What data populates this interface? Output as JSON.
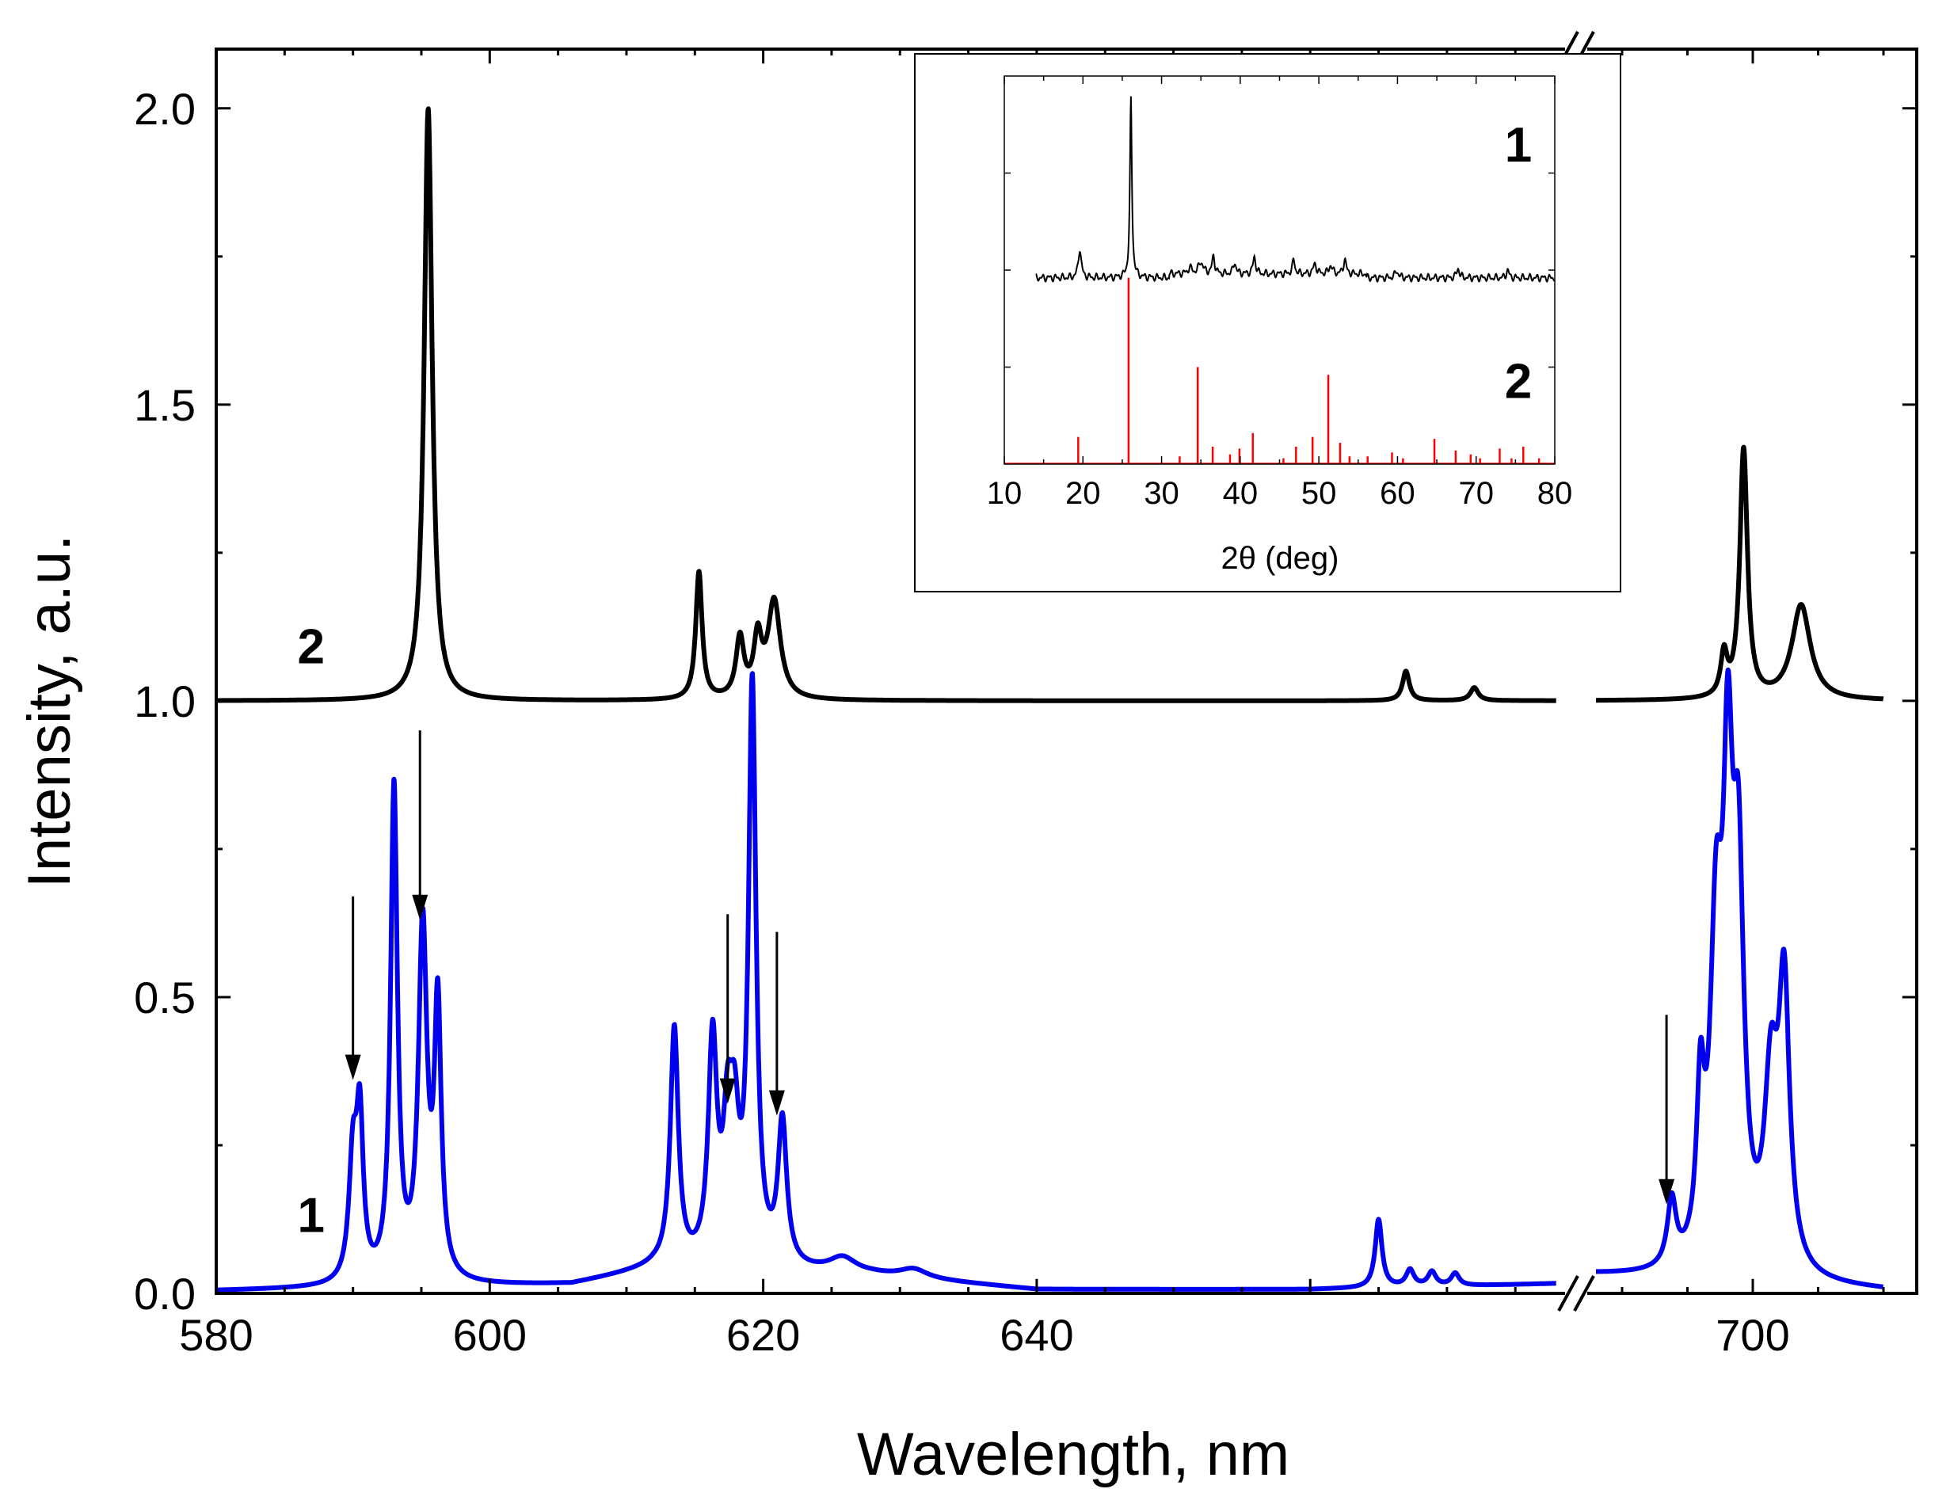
{
  "chart_data": [
    {
      "id": "main",
      "type": "line",
      "title": "",
      "xlabel": "Wavelength, nm",
      "ylabel": "Intensity, a.u.",
      "x_segments": [
        {
          "range": [
            580,
            678
          ],
          "ticks": [
            580,
            600,
            620,
            640
          ]
        },
        {
          "range": [
            688,
            710
          ],
          "ticks": [
            700
          ]
        }
      ],
      "axis_break": {
        "after": 678,
        "before": 688,
        "marker": "//"
      },
      "ylim": [
        0.0,
        2.1
      ],
      "yticks": [
        0.0,
        0.5,
        1.0,
        1.5,
        2.0
      ],
      "ytick_labels": [
        "0.0",
        "0.5",
        "1.0",
        "1.5",
        "2.0"
      ],
      "series": [
        {
          "name": "1",
          "color": "#0000ee",
          "baseline": 0.0,
          "background": [
            [
              580,
              0.004
            ],
            [
              600,
              0.012
            ],
            [
              606,
              0.014
            ],
            [
              612,
              0.04
            ],
            [
              628,
              0.03
            ],
            [
              640,
              0.006
            ],
            [
              660,
              0.006
            ],
            [
              678,
              0.015
            ],
            [
              688,
              0.03
            ],
            [
              710,
              0.004
            ]
          ],
          "peaks": [
            {
              "x": 590.0,
              "h": 0.2,
              "w": 0.35
            },
            {
              "x": 590.5,
              "h": 0.26,
              "w": 0.3
            },
            {
              "x": 593.0,
              "h": 0.83,
              "w": 0.3
            },
            {
              "x": 595.1,
              "h": 0.59,
              "w": 0.38
            },
            {
              "x": 596.2,
              "h": 0.45,
              "w": 0.3
            },
            {
              "x": 613.5,
              "h": 0.4,
              "w": 0.35
            },
            {
              "x": 616.3,
              "h": 0.37,
              "w": 0.38
            },
            {
              "x": 617.4,
              "h": 0.2,
              "w": 0.4
            },
            {
              "x": 617.9,
              "h": 0.19,
              "w": 0.4
            },
            {
              "x": 619.2,
              "h": 0.97,
              "w": 0.33
            },
            {
              "x": 621.4,
              "h": 0.24,
              "w": 0.38
            },
            {
              "x": 625.8,
              "h": 0.025,
              "w": 1.2
            },
            {
              "x": 631.0,
              "h": 0.015,
              "w": 1.2
            },
            {
              "x": 665.0,
              "h": 0.115,
              "w": 0.3
            },
            {
              "x": 667.3,
              "h": 0.028,
              "w": 0.35
            },
            {
              "x": 668.9,
              "h": 0.024,
              "w": 0.35
            },
            {
              "x": 670.6,
              "h": 0.021,
              "w": 0.35
            },
            {
              "x": 693.8,
              "h": 0.11,
              "w": 0.4
            },
            {
              "x": 696.0,
              "h": 0.26,
              "w": 0.35
            },
            {
              "x": 697.2,
              "h": 0.52,
              "w": 0.55
            },
            {
              "x": 698.1,
              "h": 0.7,
              "w": 0.45
            },
            {
              "x": 698.9,
              "h": 0.6,
              "w": 0.5
            },
            {
              "x": 701.4,
              "h": 0.3,
              "w": 0.6
            },
            {
              "x": 702.4,
              "h": 0.46,
              "w": 0.5
            }
          ]
        },
        {
          "name": "2",
          "color": "#000000",
          "baseline": 1.0,
          "background": [
            [
              580,
              0.0
            ],
            [
              710,
              0.0
            ]
          ],
          "peaks": [
            {
              "x": 595.5,
              "h": 1.0,
              "w": 0.35
            },
            {
              "x": 615.3,
              "h": 0.215,
              "w": 0.28
            },
            {
              "x": 618.3,
              "h": 0.1,
              "w": 0.35
            },
            {
              "x": 619.6,
              "h": 0.095,
              "w": 0.35
            },
            {
              "x": 620.8,
              "h": 0.165,
              "w": 0.55
            },
            {
              "x": 667.0,
              "h": 0.05,
              "w": 0.3
            },
            {
              "x": 672.0,
              "h": 0.022,
              "w": 0.35
            },
            {
              "x": 697.8,
              "h": 0.07,
              "w": 0.3
            },
            {
              "x": 699.3,
              "h": 0.42,
              "w": 0.35
            },
            {
              "x": 703.7,
              "h": 0.16,
              "w": 0.85
            }
          ]
        }
      ],
      "series_labels": [
        {
          "text": "1",
          "series": "1",
          "x": 582.0,
          "y": 0.13
        },
        {
          "text": "2",
          "series": "2",
          "x": 582.0,
          "y": 1.09
        }
      ],
      "annotations": [
        {
          "type": "arrow",
          "x": 590.0,
          "y_from": 0.67,
          "y_to": 0.36
        },
        {
          "type": "arrow",
          "x": 594.9,
          "y_from": 0.95,
          "y_to": 0.63
        },
        {
          "type": "arrow",
          "x": 617.4,
          "y_from": 0.64,
          "y_to": 0.32
        },
        {
          "type": "arrow",
          "x": 621.0,
          "y_from": 0.61,
          "y_to": 0.3
        },
        {
          "type": "arrow",
          "x": 693.4,
          "y_from": 0.47,
          "y_to": 0.15
        }
      ]
    },
    {
      "id": "inset",
      "type": "line",
      "title": "",
      "xlabel": "2θ (deg)",
      "ylabel": "",
      "xlim": [
        10,
        80
      ],
      "xticks": [
        10,
        20,
        30,
        40,
        50,
        60,
        70,
        80
      ],
      "ylim": [
        0,
        1
      ],
      "series": [
        {
          "name": "1",
          "color": "#000000",
          "baseline": 0.48,
          "peaks": [
            {
              "x": 19.6,
              "h": 0.075,
              "w": 0.22
            },
            {
              "x": 26.1,
              "h": 0.46,
              "w": 0.15
            },
            {
              "x": 33.6,
              "h": 0.015,
              "w": 0.3
            },
            {
              "x": 35.0,
              "h": 0.03,
              "w": 0.35
            },
            {
              "x": 36.6,
              "h": 0.045,
              "w": 0.2
            },
            {
              "x": 39.3,
              "h": 0.03,
              "w": 0.2
            },
            {
              "x": 41.8,
              "h": 0.045,
              "w": 0.2
            },
            {
              "x": 46.8,
              "h": 0.035,
              "w": 0.2
            },
            {
              "x": 49.5,
              "h": 0.025,
              "w": 0.25
            },
            {
              "x": 51.5,
              "h": 0.022,
              "w": 0.25
            },
            {
              "x": 53.3,
              "h": 0.038,
              "w": 0.2
            },
            {
              "x": 59.9,
              "h": 0.018,
              "w": 0.25
            },
            {
              "x": 67.7,
              "h": 0.025,
              "w": 0.2
            },
            {
              "x": 74.0,
              "h": 0.02,
              "w": 0.2
            }
          ]
        },
        {
          "name": "2",
          "color": "#ff0000",
          "type": "sticks",
          "baseline": 0.0,
          "sticks": [
            [
              19.4,
              0.07
            ],
            [
              25.8,
              0.48
            ],
            [
              32.3,
              0.02
            ],
            [
              34.6,
              0.25
            ],
            [
              36.5,
              0.045
            ],
            [
              38.7,
              0.025
            ],
            [
              39.9,
              0.04
            ],
            [
              41.6,
              0.08
            ],
            [
              45.5,
              0.015
            ],
            [
              47.1,
              0.045
            ],
            [
              49.2,
              0.07
            ],
            [
              51.2,
              0.23
            ],
            [
              52.7,
              0.055
            ],
            [
              53.9,
              0.02
            ],
            [
              56.2,
              0.02
            ],
            [
              59.3,
              0.03
            ],
            [
              60.7,
              0.015
            ],
            [
              64.7,
              0.065
            ],
            [
              67.4,
              0.035
            ],
            [
              69.3,
              0.025
            ],
            [
              70.5,
              0.015
            ],
            [
              73.0,
              0.04
            ],
            [
              74.5,
              0.015
            ],
            [
              76.0,
              0.045
            ],
            [
              78.0,
              0.015
            ]
          ]
        }
      ],
      "series_labels": [
        {
          "text": "1",
          "series": "1"
        },
        {
          "text": "2",
          "series": "2"
        }
      ]
    }
  ]
}
